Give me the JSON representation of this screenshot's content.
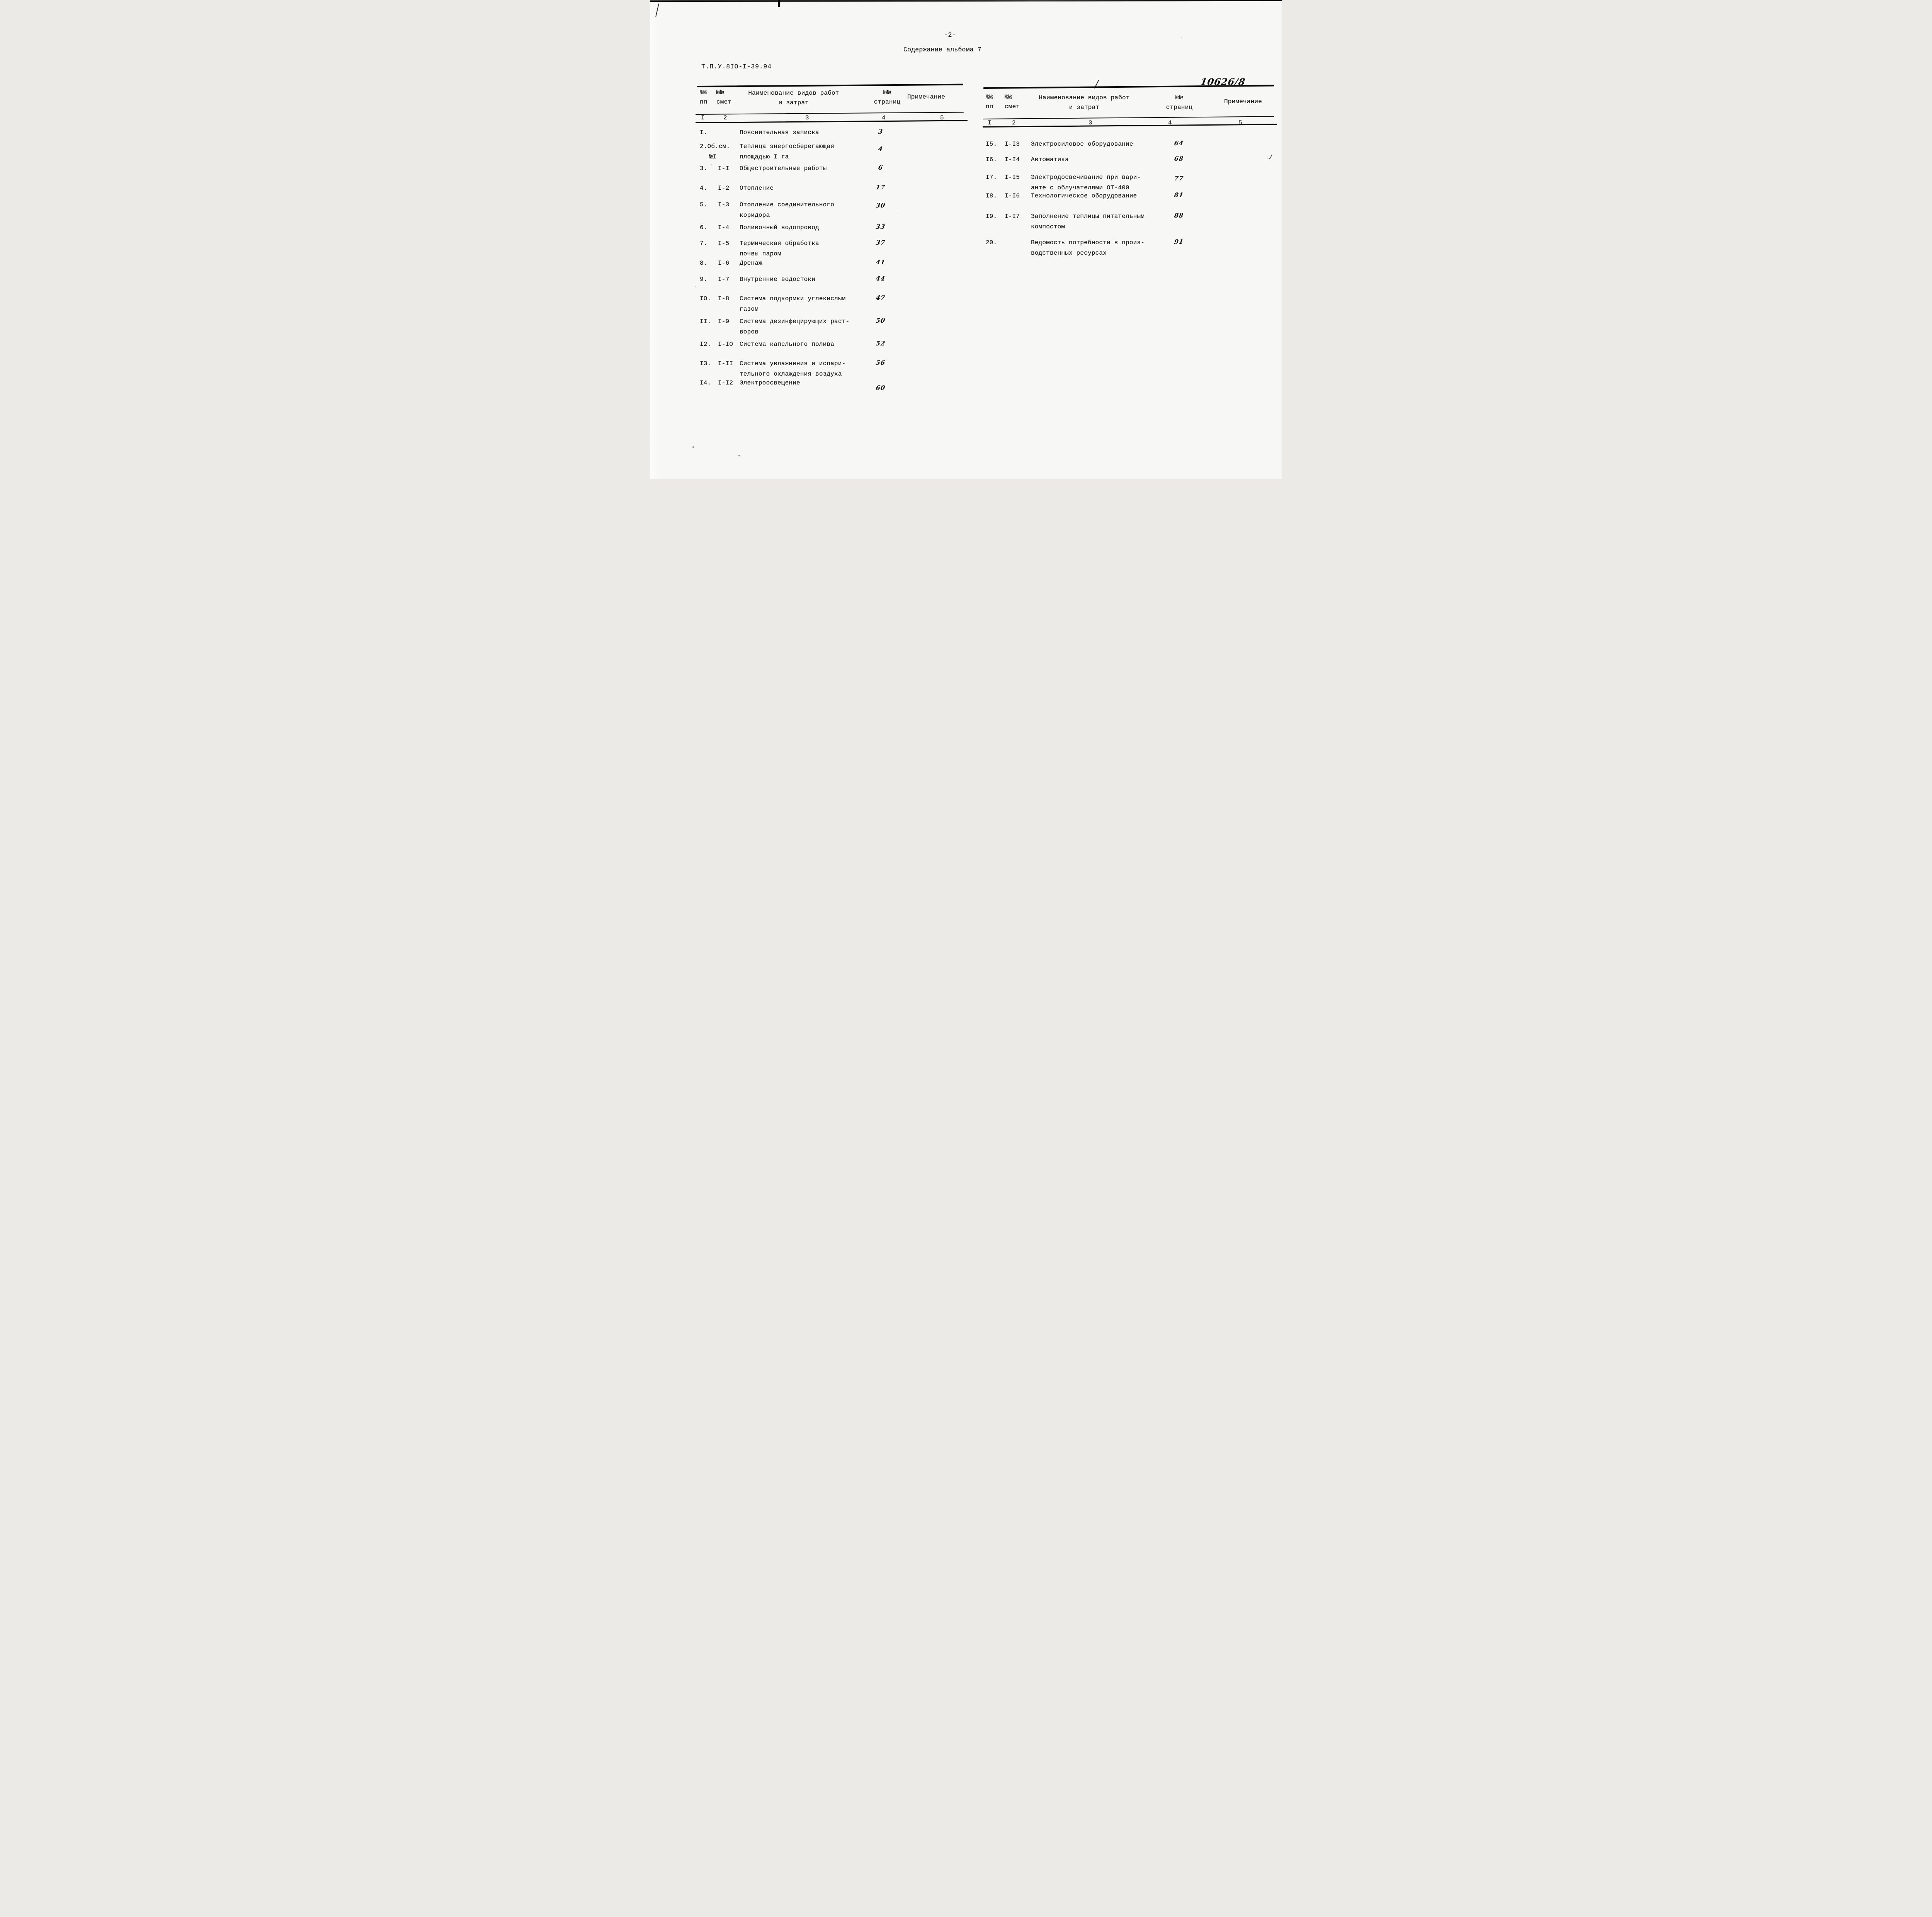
{
  "page": {
    "page_number": "-2-",
    "title": "Содержание альбома 7",
    "doc_code": "Т.П.У.8IO-I-39.94",
    "handwritten_ref": "10626/8"
  },
  "header": {
    "col_pp": "№№\nпп",
    "col_smeta": "№№\nсмет",
    "col_name": "Наименование видов работ\nи затрат",
    "col_pages": "№№\nстраниц",
    "col_note": "Примечание",
    "col_numbers": [
      "I",
      "2",
      "3",
      "4",
      "5"
    ]
  },
  "toc": {
    "left_rows": [
      {
        "pp": "I.",
        "smeta": "",
        "title": "Пояснительная записка",
        "page": "3"
      },
      {
        "pp": "2.Об.см.",
        "smeta": "№I",
        "title": "Теплица энергосберегающая\nплощадью I га",
        "page": "4"
      },
      {
        "pp": "3.",
        "smeta": "I-I",
        "title": "Общестроительные работы",
        "page": "6"
      },
      {
        "pp": "4.",
        "smeta": "I-2",
        "title": "Отопление",
        "page": "17"
      },
      {
        "pp": "5.",
        "smeta": "I-3",
        "title": "Отопление соединительного\nкоридора",
        "page": "30"
      },
      {
        "pp": "6.",
        "smeta": "I-4",
        "title": "Поливочный водопровод",
        "page": "33"
      },
      {
        "pp": "7.",
        "smeta": "I-5",
        "title": "Термическая обработка\nпочвы паром",
        "page": "37"
      },
      {
        "pp": "8.",
        "smeta": "I-6",
        "title": "Дренаж",
        "page": "41"
      },
      {
        "pp": "9.",
        "smeta": "I-7",
        "title": "Внутренние водостоки",
        "page": "44"
      },
      {
        "pp": "IO.",
        "smeta": "I-8",
        "title": "Система подкормки углекислым\nгазом",
        "page": "47"
      },
      {
        "pp": "II.",
        "smeta": "I-9",
        "title": "Система дезинфецирующих раст-\nворов",
        "page": "50"
      },
      {
        "pp": "I2.",
        "smeta": "I-IO",
        "title": "Система капельного полива",
        "page": "52"
      },
      {
        "pp": "I3.",
        "smeta": "I-II",
        "title": "Система увлажнения и испари-\nтельного охлаждения воздуха",
        "page": "56"
      },
      {
        "pp": "I4.",
        "smeta": "I-I2",
        "title": "Электроосвещение",
        "page": "60"
      }
    ],
    "right_rows": [
      {
        "pp": "I5.",
        "smeta": "I-I3",
        "title": "Электросиловое оборудование",
        "page": "64"
      },
      {
        "pp": "I6.",
        "smeta": "I-I4",
        "title": "Автоматика",
        "page": "68"
      },
      {
        "pp": "I7.",
        "smeta": "I-I5",
        "title": "Электродосвечивание при вари-\nанте с облучателями ОТ-400",
        "page": "77"
      },
      {
        "pp": "I8.",
        "smeta": "I-I6",
        "title": "Технологическое оборудование",
        "page": "81"
      },
      {
        "pp": "I9.",
        "smeta": "I-I7",
        "title": "Заполнение теплицы питательным\nкомпостом",
        "page": "88"
      },
      {
        "pp": "20.",
        "smeta": "",
        "title": "Ведомость потребности в произ-\nводственных ресурсах",
        "page": "91"
      }
    ]
  }
}
